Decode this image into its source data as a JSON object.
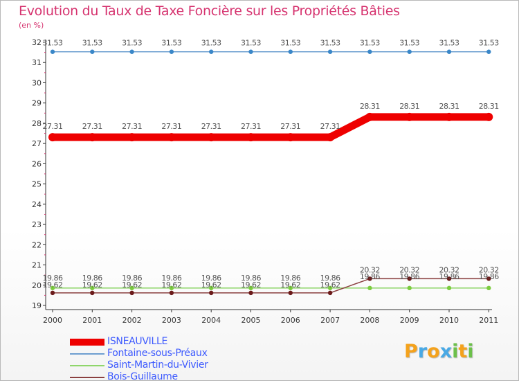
{
  "title": "Evolution du Taux de Taxe Foncière sur les Propriétés Bâties",
  "unit_label": "(en %)",
  "logo": {
    "letters": [
      "P",
      "r",
      "o",
      "x",
      "i",
      "t",
      "i"
    ],
    "colors": [
      "#f4a21c",
      "#49a9e5",
      "#f4a21c",
      "#49a9e5",
      "#6cc04a",
      "#f4a21c",
      "#6cc04a"
    ]
  },
  "chart_data": {
    "type": "line",
    "title": "Evolution du Taux de Taxe Foncière sur les Propriétés Bâties",
    "ylabel": "(en %)",
    "xlabel": "",
    "x": [
      "2000",
      "2001",
      "2002",
      "2003",
      "2004",
      "2005",
      "2006",
      "2007",
      "2008",
      "2009",
      "2010",
      "2011"
    ],
    "ylim": [
      19,
      32
    ],
    "yticks": [
      "19",
      "20",
      "21",
      "22",
      "23",
      "24",
      "25",
      "26",
      "27",
      "28",
      "29",
      "30",
      "31",
      "32"
    ],
    "series": [
      {
        "name": "ISNEAUVILLE",
        "color": "#ee0000",
        "values": [
          27.31,
          27.31,
          27.31,
          27.31,
          27.31,
          27.31,
          27.31,
          27.31,
          28.31,
          28.31,
          28.31,
          28.31
        ],
        "labels": [
          "27.31",
          "27.31",
          "27.31",
          "27.31",
          "27.31",
          "27.31",
          "27.31",
          "27.31",
          "28.31",
          "28.31",
          "28.31",
          "28.31"
        ]
      },
      {
        "name": "Fontaine-sous-Préaux",
        "color": "#6e9fd0",
        "values": [
          31.53,
          31.53,
          31.53,
          31.53,
          31.53,
          31.53,
          31.53,
          31.53,
          31.53,
          31.53,
          31.53,
          31.53
        ],
        "labels": [
          "31.53",
          "31.53",
          "31.53",
          "31.53",
          "31.53",
          "31.53",
          "31.53",
          "31.53",
          "31.53",
          "31.53",
          "31.53",
          "31.53"
        ]
      },
      {
        "name": "Saint-Martin-du-Vivier",
        "color": "#8fd66b",
        "values": [
          19.86,
          19.86,
          19.86,
          19.86,
          19.86,
          19.86,
          19.86,
          19.86,
          19.86,
          19.86,
          19.86,
          19.86
        ],
        "labels": [
          "19.86",
          "19.86",
          "19.86",
          "19.86",
          "19.86",
          "19.86",
          "19.86",
          "19.86",
          "19.86",
          "19.86",
          "19.86",
          "19.86"
        ]
      },
      {
        "name": "Bois-Guillaume",
        "color": "#8b4040",
        "values": [
          19.62,
          19.62,
          19.62,
          19.62,
          19.62,
          19.62,
          19.62,
          19.62,
          20.32,
          20.32,
          20.32,
          20.32
        ],
        "labels": [
          "19.62",
          "19.62",
          "19.62",
          "19.62",
          "19.62",
          "19.62",
          "19.62",
          "19.62",
          "20.32",
          "20.32",
          "20.32",
          "20.32"
        ]
      }
    ]
  }
}
